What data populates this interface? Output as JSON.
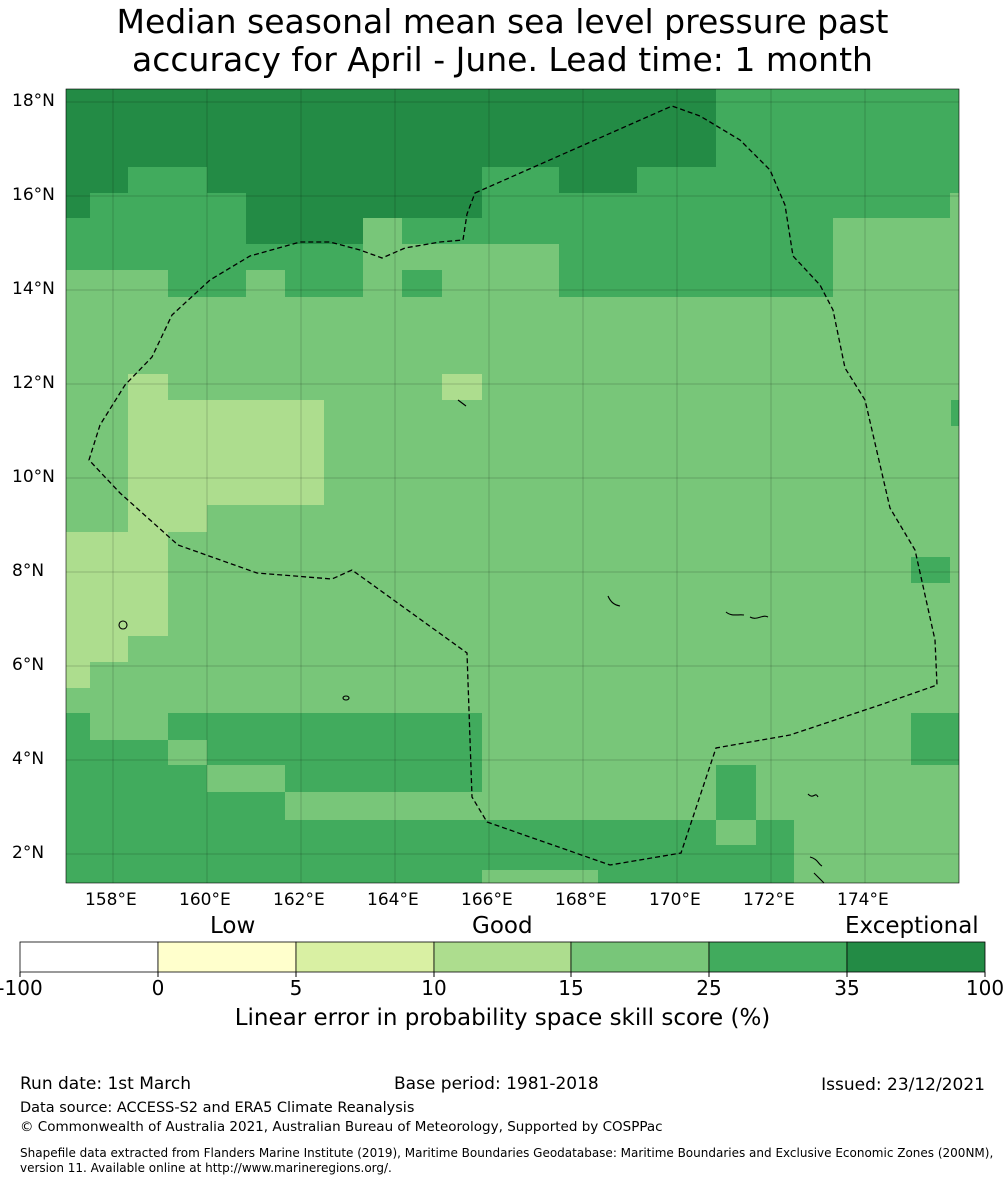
{
  "title_line1": "Median seasonal mean sea level pressure past",
  "title_line2": "accuracy for April - June. Lead time: 1 month",
  "map": {
    "lon_labels": [
      "158°E",
      "160°E",
      "162°E",
      "164°E",
      "166°E",
      "168°E",
      "170°E",
      "172°E",
      "174°E"
    ],
    "lat_labels": [
      "18°N",
      "16°N",
      "14°N",
      "12°N",
      "10°N",
      "8°N",
      "6°N",
      "4°N",
      "2°N"
    ],
    "category_colors": {
      "exceptional": "#238b45",
      "very_good": "#41ab5d",
      "good_high": "#78c679",
      "good_low": "#addd8e"
    },
    "boundary_style": "dashed black line (EEZ)"
  },
  "colorbar": {
    "words": {
      "low": "Low",
      "good": "Good",
      "exceptional": "Exceptional"
    },
    "ticks": [
      "-100",
      "0",
      "5",
      "10",
      "15",
      "25",
      "35",
      "100"
    ],
    "colors": [
      "#ffffff",
      "#ffffcc",
      "#d9f0a3",
      "#addd8e",
      "#78c679",
      "#41ab5d",
      "#238b45"
    ],
    "title": "Linear error in probability space skill score (%)"
  },
  "footer": {
    "run_date": "Run date: 1st March",
    "base_period": "Base period: 1981-2018",
    "issued": "Issued: 23/12/2021",
    "data_source": "Data source: ACCESS-S2 and ERA5 Climate Reanalysis",
    "copyright": "© Commonwealth of Australia 2021, Australian Bureau of Meteorology, Supported by COSPPac",
    "shapefile": "Shapefile data extracted from Flanders Marine Institute (2019), Maritime Boundaries Geodatabase: Maritime Boundaries and Exclusive Economic Zones (200NM), version 11. Available online at http://www.marineregions.org/."
  }
}
